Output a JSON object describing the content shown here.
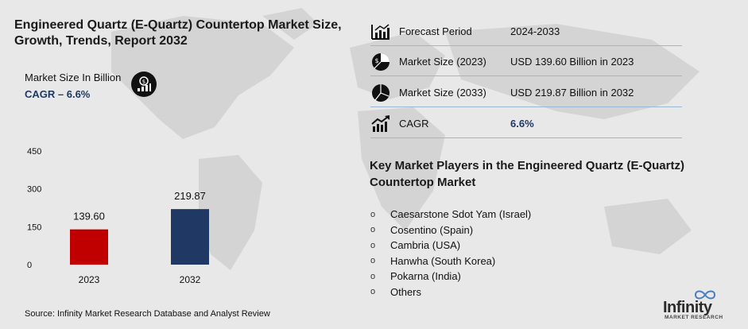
{
  "title": "Engineered Quartz (E-Quartz) Countertop Market Size, Growth, Trends, Report 2032",
  "subtitle": "Market Size In Billion",
  "cagr_text": "CAGR – 6.6%",
  "source": "Source: Infinity Market Research Database and Analyst Review",
  "stats": [
    {
      "label": "Forecast Period",
      "value": "2024-2033",
      "icon": "bar-chart-icon"
    },
    {
      "label": "Market Size (2023)",
      "value": "USD 139.60 Billion in 2023",
      "icon": "pie-chart-dollar-icon"
    },
    {
      "label": "Market Size (2033)",
      "value": "USD 219.87 Billion in 2032",
      "icon": "pie-chart-icon"
    },
    {
      "label": "CAGR",
      "value": "6.6%",
      "icon": "growth-arrow-icon"
    }
  ],
  "players_title": "Key Market Players in the Engineered Quartz (E-Quartz) Countertop Market",
  "players": [
    "Caesarstone Sdot Yam (Israel)",
    "Cosentino (Spain)",
    "Cambria (USA)",
    "Hanwha (South Korea)",
    "Pokarna (India)",
    "Others"
  ],
  "bullet": "o",
  "logo": {
    "word": "Infinity",
    "sub": "MARKET RESEARCH"
  },
  "colors": {
    "bar_2023": "#c00000",
    "bar_2032": "#1f3864",
    "accent": "#1f3864",
    "rule": "#9ab7d6"
  },
  "chart_data": {
    "type": "bar",
    "categories": [
      "2023",
      "2032"
    ],
    "values": [
      139.6,
      219.87
    ],
    "value_labels": [
      "139.60",
      "219.87"
    ],
    "yticks": [
      0,
      150,
      300,
      450
    ],
    "ylim": [
      0,
      450
    ],
    "title": "",
    "xlabel": "",
    "ylabel": "",
    "grid": false,
    "colors": [
      "#c00000",
      "#1f3864"
    ]
  }
}
